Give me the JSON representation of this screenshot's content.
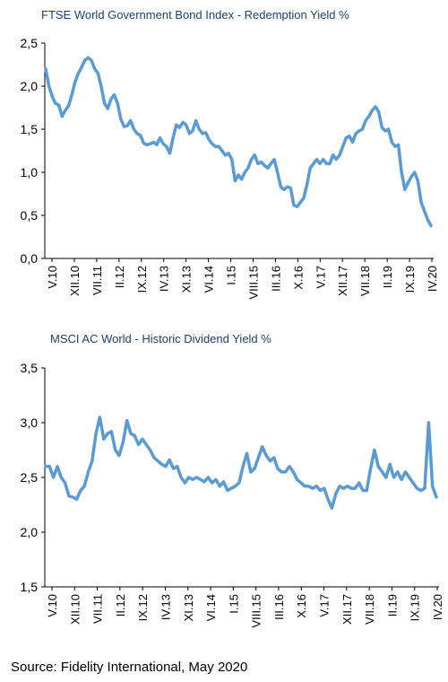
{
  "chart_data": [
    {
      "type": "line",
      "title": "FTSE World Government Bond Index - Redemption Yield %",
      "xlabel": "",
      "ylabel": "",
      "ylim": [
        0,
        2.5
      ],
      "y_ticks": [
        "0,0",
        "0,5",
        "1,0",
        "1,5",
        "2,0",
        "2,5"
      ],
      "x_ticks": [
        "V.10",
        "XII.10",
        "VII.11",
        "II.12",
        "IX.12",
        "IV.13",
        "XI.13",
        "VI.14",
        "I.15",
        "VIII.15",
        "III.16",
        "X.16",
        "V.17",
        "XII.17",
        "VII.18",
        "II.19",
        "IX.19",
        "IV.20"
      ],
      "line_color": "#5b9bd5",
      "grid": false,
      "series": [
        {
          "x_start": "2010-05",
          "x_end": "2020-05",
          "values": [
            2.2,
            2.0,
            1.88,
            1.8,
            1.78,
            1.65,
            1.72,
            1.77,
            1.9,
            2.05,
            2.15,
            2.22,
            2.3,
            2.33,
            2.3,
            2.2,
            2.15,
            2.0,
            1.8,
            1.74,
            1.85,
            1.9,
            1.8,
            1.62,
            1.53,
            1.54,
            1.6,
            1.5,
            1.45,
            1.43,
            1.34,
            1.32,
            1.33,
            1.35,
            1.32,
            1.4,
            1.33,
            1.3,
            1.22,
            1.4,
            1.55,
            1.52,
            1.58,
            1.55,
            1.45,
            1.48,
            1.6,
            1.5,
            1.45,
            1.46,
            1.38,
            1.33,
            1.3,
            1.3,
            1.25,
            1.2,
            1.22,
            1.15,
            0.9,
            0.97,
            0.92,
            1.0,
            1.05,
            1.15,
            1.2,
            1.1,
            1.12,
            1.08,
            1.05,
            1.1,
            1.15,
            1.0,
            0.83,
            0.8,
            0.83,
            0.82,
            0.62,
            0.6,
            0.65,
            0.7,
            0.85,
            1.05,
            1.1,
            1.15,
            1.1,
            1.15,
            1.1,
            1.1,
            1.2,
            1.15,
            1.2,
            1.3,
            1.4,
            1.42,
            1.35,
            1.45,
            1.48,
            1.5,
            1.6,
            1.65,
            1.72,
            1.76,
            1.7,
            1.52,
            1.48,
            1.5,
            1.35,
            1.3,
            1.32,
            1.0,
            0.8,
            0.88,
            0.95,
            1.0,
            0.9,
            0.65,
            0.55,
            0.45,
            0.38
          ]
        }
      ]
    },
    {
      "type": "line",
      "title": "MSCI AC World - Historic Dividend Yield %",
      "xlabel": "",
      "ylabel": "",
      "ylim": [
        1.5,
        3.5
      ],
      "y_ticks": [
        "1,5",
        "2,0",
        "2,5",
        "3,0",
        "3,5"
      ],
      "x_ticks": [
        "V.10",
        "XII.10",
        "VII.11",
        "II.12",
        "IX.12",
        "IV.13",
        "XI.13",
        "VI.14",
        "I.15",
        "VIII.15",
        "III.16",
        "X.16",
        "V.17",
        "XII.17",
        "VII.18",
        "II.19",
        "IX.19",
        "IV.20"
      ],
      "line_color": "#5b9bd5",
      "grid": false,
      "series": [
        {
          "x_start": "2010-05",
          "x_end": "2020-05",
          "values": [
            2.6,
            2.6,
            2.5,
            2.6,
            2.5,
            2.45,
            2.33,
            2.32,
            2.3,
            2.38,
            2.42,
            2.55,
            2.65,
            2.9,
            3.05,
            2.85,
            2.9,
            2.92,
            2.75,
            2.7,
            2.82,
            3.02,
            2.9,
            2.88,
            2.8,
            2.85,
            2.8,
            2.75,
            2.68,
            2.65,
            2.62,
            2.6,
            2.66,
            2.58,
            2.6,
            2.5,
            2.45,
            2.5,
            2.48,
            2.5,
            2.48,
            2.46,
            2.5,
            2.45,
            2.48,
            2.42,
            2.46,
            2.38,
            2.4,
            2.42,
            2.45,
            2.6,
            2.72,
            2.55,
            2.58,
            2.68,
            2.78,
            2.7,
            2.65,
            2.68,
            2.58,
            2.55,
            2.55,
            2.6,
            2.55,
            2.48,
            2.45,
            2.42,
            2.42,
            2.4,
            2.42,
            2.38,
            2.4,
            2.3,
            2.22,
            2.35,
            2.42,
            2.4,
            2.42,
            2.4,
            2.4,
            2.45,
            2.38,
            2.38,
            2.58,
            2.75,
            2.6,
            2.55,
            2.5,
            2.62,
            2.5,
            2.55,
            2.48,
            2.55,
            2.5,
            2.45,
            2.4,
            2.38,
            2.4,
            3.0,
            2.42,
            2.32
          ]
        }
      ]
    }
  ],
  "source_text": "Source: Fidelity International, May 2020"
}
